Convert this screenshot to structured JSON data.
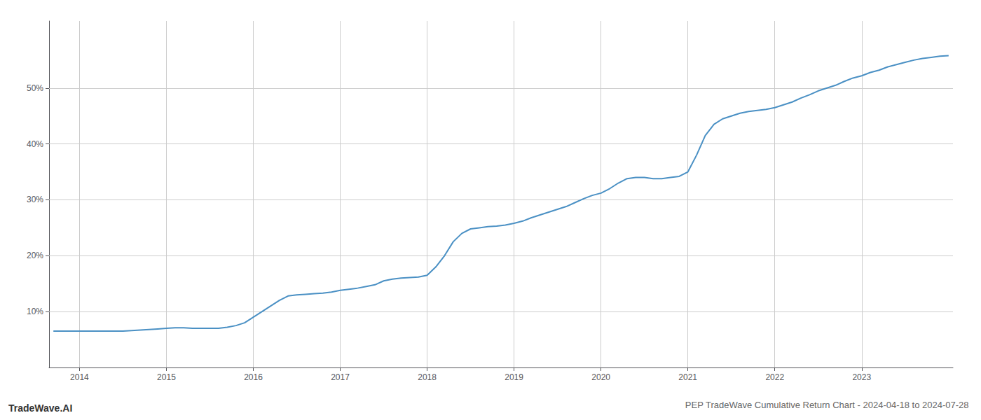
{
  "chart_data": {
    "type": "line",
    "title": "PEP TradeWave Cumulative Return Chart - 2024-04-18 to 2024-07-28",
    "annotations": [
      "TradeWave.AI"
    ],
    "color": "#4a90c4",
    "grid": true,
    "x": [
      2013.7,
      2013.8,
      2013.9,
      2014.0,
      2014.1,
      2014.2,
      2014.3,
      2014.4,
      2014.5,
      2014.6,
      2014.7,
      2014.8,
      2014.9,
      2015.0,
      2015.1,
      2015.2,
      2015.3,
      2015.4,
      2015.5,
      2015.6,
      2015.7,
      2015.8,
      2015.9,
      2016.0,
      2016.1,
      2016.2,
      2016.3,
      2016.4,
      2016.5,
      2016.6,
      2016.7,
      2016.8,
      2016.9,
      2017.0,
      2017.1,
      2017.2,
      2017.3,
      2017.4,
      2017.5,
      2017.6,
      2017.7,
      2017.8,
      2017.9,
      2018.0,
      2018.1,
      2018.2,
      2018.3,
      2018.4,
      2018.5,
      2018.6,
      2018.7,
      2018.8,
      2018.9,
      2019.0,
      2019.1,
      2019.2,
      2019.3,
      2019.4,
      2019.5,
      2019.6,
      2019.7,
      2019.8,
      2019.9,
      2020.0,
      2020.1,
      2020.2,
      2020.3,
      2020.4,
      2020.5,
      2020.6,
      2020.7,
      2020.8,
      2020.9,
      2021.0,
      2021.1,
      2021.2,
      2021.3,
      2021.4,
      2021.5,
      2021.6,
      2021.7,
      2021.8,
      2021.9,
      2022.0,
      2022.1,
      2022.2,
      2022.3,
      2022.4,
      2022.5,
      2022.6,
      2022.7,
      2022.8,
      2022.9,
      2023.0,
      2023.1,
      2023.2,
      2023.3,
      2023.4,
      2023.5,
      2023.6,
      2023.7,
      2023.8,
      2023.9,
      2024.0
    ],
    "values": [
      6.5,
      6.5,
      6.5,
      6.5,
      6.5,
      6.5,
      6.5,
      6.5,
      6.5,
      6.6,
      6.7,
      6.8,
      6.9,
      7.0,
      7.1,
      7.1,
      7.0,
      7.0,
      7.0,
      7.0,
      7.2,
      7.5,
      8.0,
      9.0,
      10.0,
      11.0,
      12.0,
      12.8,
      13.0,
      13.1,
      13.2,
      13.3,
      13.5,
      13.8,
      14.0,
      14.2,
      14.5,
      14.8,
      15.5,
      15.8,
      16.0,
      16.1,
      16.2,
      16.5,
      18.0,
      20.0,
      22.5,
      24.0,
      24.8,
      25.0,
      25.2,
      25.3,
      25.5,
      25.8,
      26.2,
      26.8,
      27.3,
      27.8,
      28.3,
      28.8,
      29.5,
      30.2,
      30.8,
      31.2,
      32.0,
      33.0,
      33.8,
      34.0,
      34.0,
      33.8,
      33.8,
      34.0,
      34.2,
      35.0,
      38.0,
      41.5,
      43.5,
      44.5,
      45.0,
      45.5,
      45.8,
      46.0,
      46.2,
      46.5,
      47.0,
      47.5,
      48.2,
      48.8,
      49.5,
      50.0,
      50.5,
      51.2,
      51.8,
      52.2,
      52.8,
      53.2,
      53.8,
      54.2,
      54.6,
      55.0,
      55.3,
      55.5,
      55.7,
      55.8
    ],
    "xlim": [
      2013.65,
      2024.05
    ],
    "ylim": [
      0,
      62
    ],
    "xticks": [
      2014,
      2015,
      2016,
      2017,
      2018,
      2019,
      2020,
      2021,
      2022,
      2023
    ],
    "yticks": [
      {
        "value": 10,
        "label": "10%"
      },
      {
        "value": 20,
        "label": "20%"
      },
      {
        "value": 30,
        "label": "30%"
      },
      {
        "value": 40,
        "label": "40%"
      },
      {
        "value": 50,
        "label": "50%"
      }
    ]
  }
}
